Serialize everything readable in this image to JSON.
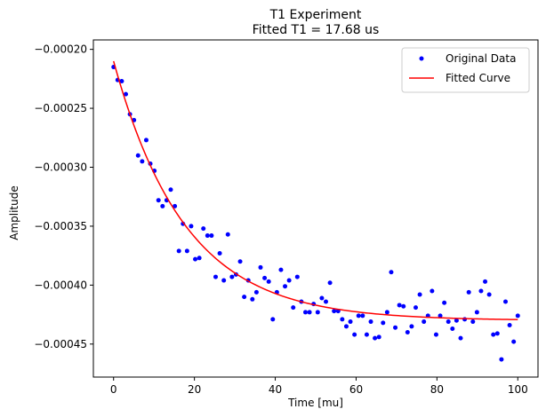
{
  "chart_data": {
    "type": "scatter",
    "title": "T1 Experiment",
    "subtitle": "Fitted T1 = 17.68 us",
    "xlabel": "Time [mu]",
    "ylabel": "Amplitude",
    "xlim": [
      -5,
      105
    ],
    "ylim": [
      -0.000478,
      -0.000192
    ],
    "xticks": [
      0,
      20,
      40,
      60,
      80,
      100
    ],
    "xtick_labels": [
      "0",
      "20",
      "40",
      "60",
      "80",
      "100"
    ],
    "yticks": [
      -0.0002,
      -0.00025,
      -0.0003,
      -0.00035,
      -0.0004,
      -0.00045
    ],
    "ytick_labels": [
      "−0.00020",
      "−0.00025",
      "−0.00030",
      "−0.00035",
      "−0.00040",
      "−0.00045"
    ],
    "grid": false,
    "legend_position": "top-right",
    "series": [
      {
        "name": "Original Data",
        "kind": "scatter",
        "color": "#0000ff",
        "points": [
          [
            0,
            -0.000215
          ],
          [
            1.01,
            -0.000226
          ],
          [
            2.02,
            -0.000227
          ],
          [
            3.03,
            -0.000238
          ],
          [
            4.04,
            -0.000255
          ],
          [
            5.05,
            -0.00026
          ],
          [
            6.06,
            -0.00029
          ],
          [
            7.07,
            -0.000295
          ],
          [
            8.08,
            -0.000277
          ],
          [
            9.09,
            -0.000297
          ],
          [
            10.1,
            -0.000303
          ],
          [
            11.11,
            -0.000328
          ],
          [
            12.12,
            -0.000333
          ],
          [
            13.13,
            -0.000328
          ],
          [
            14.14,
            -0.000319
          ],
          [
            15.15,
            -0.000333
          ],
          [
            16.16,
            -0.000371
          ],
          [
            17.17,
            -0.000348
          ],
          [
            18.18,
            -0.000371
          ],
          [
            19.19,
            -0.00035
          ],
          [
            20.2,
            -0.000378
          ],
          [
            21.21,
            -0.000377
          ],
          [
            22.22,
            -0.000352
          ],
          [
            23.23,
            -0.000358
          ],
          [
            24.24,
            -0.000358
          ],
          [
            25.25,
            -0.000393
          ],
          [
            26.26,
            -0.000373
          ],
          [
            27.27,
            -0.000396
          ],
          [
            28.28,
            -0.000357
          ],
          [
            29.29,
            -0.000393
          ],
          [
            30.3,
            -0.000391
          ],
          [
            31.31,
            -0.00038
          ],
          [
            32.32,
            -0.00041
          ],
          [
            33.33,
            -0.000396
          ],
          [
            34.34,
            -0.000412
          ],
          [
            35.35,
            -0.000406
          ],
          [
            36.36,
            -0.000385
          ],
          [
            37.37,
            -0.000394
          ],
          [
            38.38,
            -0.000397
          ],
          [
            39.39,
            -0.000429
          ],
          [
            40.4,
            -0.000406
          ],
          [
            41.41,
            -0.000387
          ],
          [
            42.42,
            -0.000401
          ],
          [
            43.43,
            -0.000396
          ],
          [
            44.44,
            -0.000419
          ],
          [
            45.45,
            -0.000393
          ],
          [
            46.46,
            -0.000414
          ],
          [
            47.47,
            -0.000423
          ],
          [
            48.48,
            -0.000423
          ],
          [
            49.49,
            -0.000416
          ],
          [
            50.51,
            -0.000423
          ],
          [
            51.52,
            -0.000411
          ],
          [
            52.53,
            -0.000414
          ],
          [
            53.54,
            -0.000398
          ],
          [
            54.55,
            -0.000422
          ],
          [
            55.56,
            -0.000422
          ],
          [
            56.57,
            -0.000429
          ],
          [
            57.58,
            -0.000435
          ],
          [
            58.59,
            -0.000431
          ],
          [
            59.6,
            -0.000442
          ],
          [
            60.61,
            -0.000426
          ],
          [
            61.62,
            -0.000426
          ],
          [
            62.63,
            -0.000442
          ],
          [
            63.64,
            -0.000431
          ],
          [
            64.65,
            -0.000445
          ],
          [
            65.66,
            -0.000444
          ],
          [
            66.67,
            -0.000432
          ],
          [
            67.68,
            -0.000423
          ],
          [
            68.69,
            -0.000389
          ],
          [
            69.7,
            -0.000436
          ],
          [
            70.71,
            -0.000417
          ],
          [
            71.72,
            -0.000418
          ],
          [
            72.73,
            -0.00044
          ],
          [
            73.74,
            -0.000435
          ],
          [
            74.75,
            -0.000419
          ],
          [
            75.76,
            -0.000408
          ],
          [
            76.77,
            -0.000431
          ],
          [
            77.78,
            -0.000426
          ],
          [
            78.79,
            -0.000405
          ],
          [
            79.8,
            -0.000442
          ],
          [
            80.81,
            -0.000426
          ],
          [
            81.82,
            -0.000415
          ],
          [
            82.83,
            -0.000431
          ],
          [
            83.84,
            -0.000437
          ],
          [
            84.85,
            -0.00043
          ],
          [
            85.86,
            -0.000445
          ],
          [
            86.87,
            -0.000429
          ],
          [
            87.88,
            -0.000406
          ],
          [
            88.89,
            -0.000431
          ],
          [
            89.9,
            -0.000423
          ],
          [
            90.91,
            -0.000405
          ],
          [
            91.92,
            -0.000397
          ],
          [
            92.93,
            -0.000408
          ],
          [
            93.94,
            -0.000442
          ],
          [
            94.95,
            -0.000441
          ],
          [
            95.96,
            -0.000463
          ],
          [
            96.97,
            -0.000414
          ],
          [
            97.98,
            -0.000434
          ],
          [
            98.99,
            -0.000448
          ],
          [
            100,
            -0.000426
          ]
        ]
      },
      {
        "name": "Fitted Curve",
        "kind": "line",
        "color": "#ff0000",
        "model": "exponential_decay",
        "T1": 17.68,
        "offset": -0.00043,
        "amplitude": 0.00022
      }
    ],
    "legend": [
      {
        "label": "Original Data",
        "marker": "dot",
        "color": "#0000ff"
      },
      {
        "label": "Fitted Curve",
        "marker": "line",
        "color": "#ff0000"
      }
    ]
  }
}
